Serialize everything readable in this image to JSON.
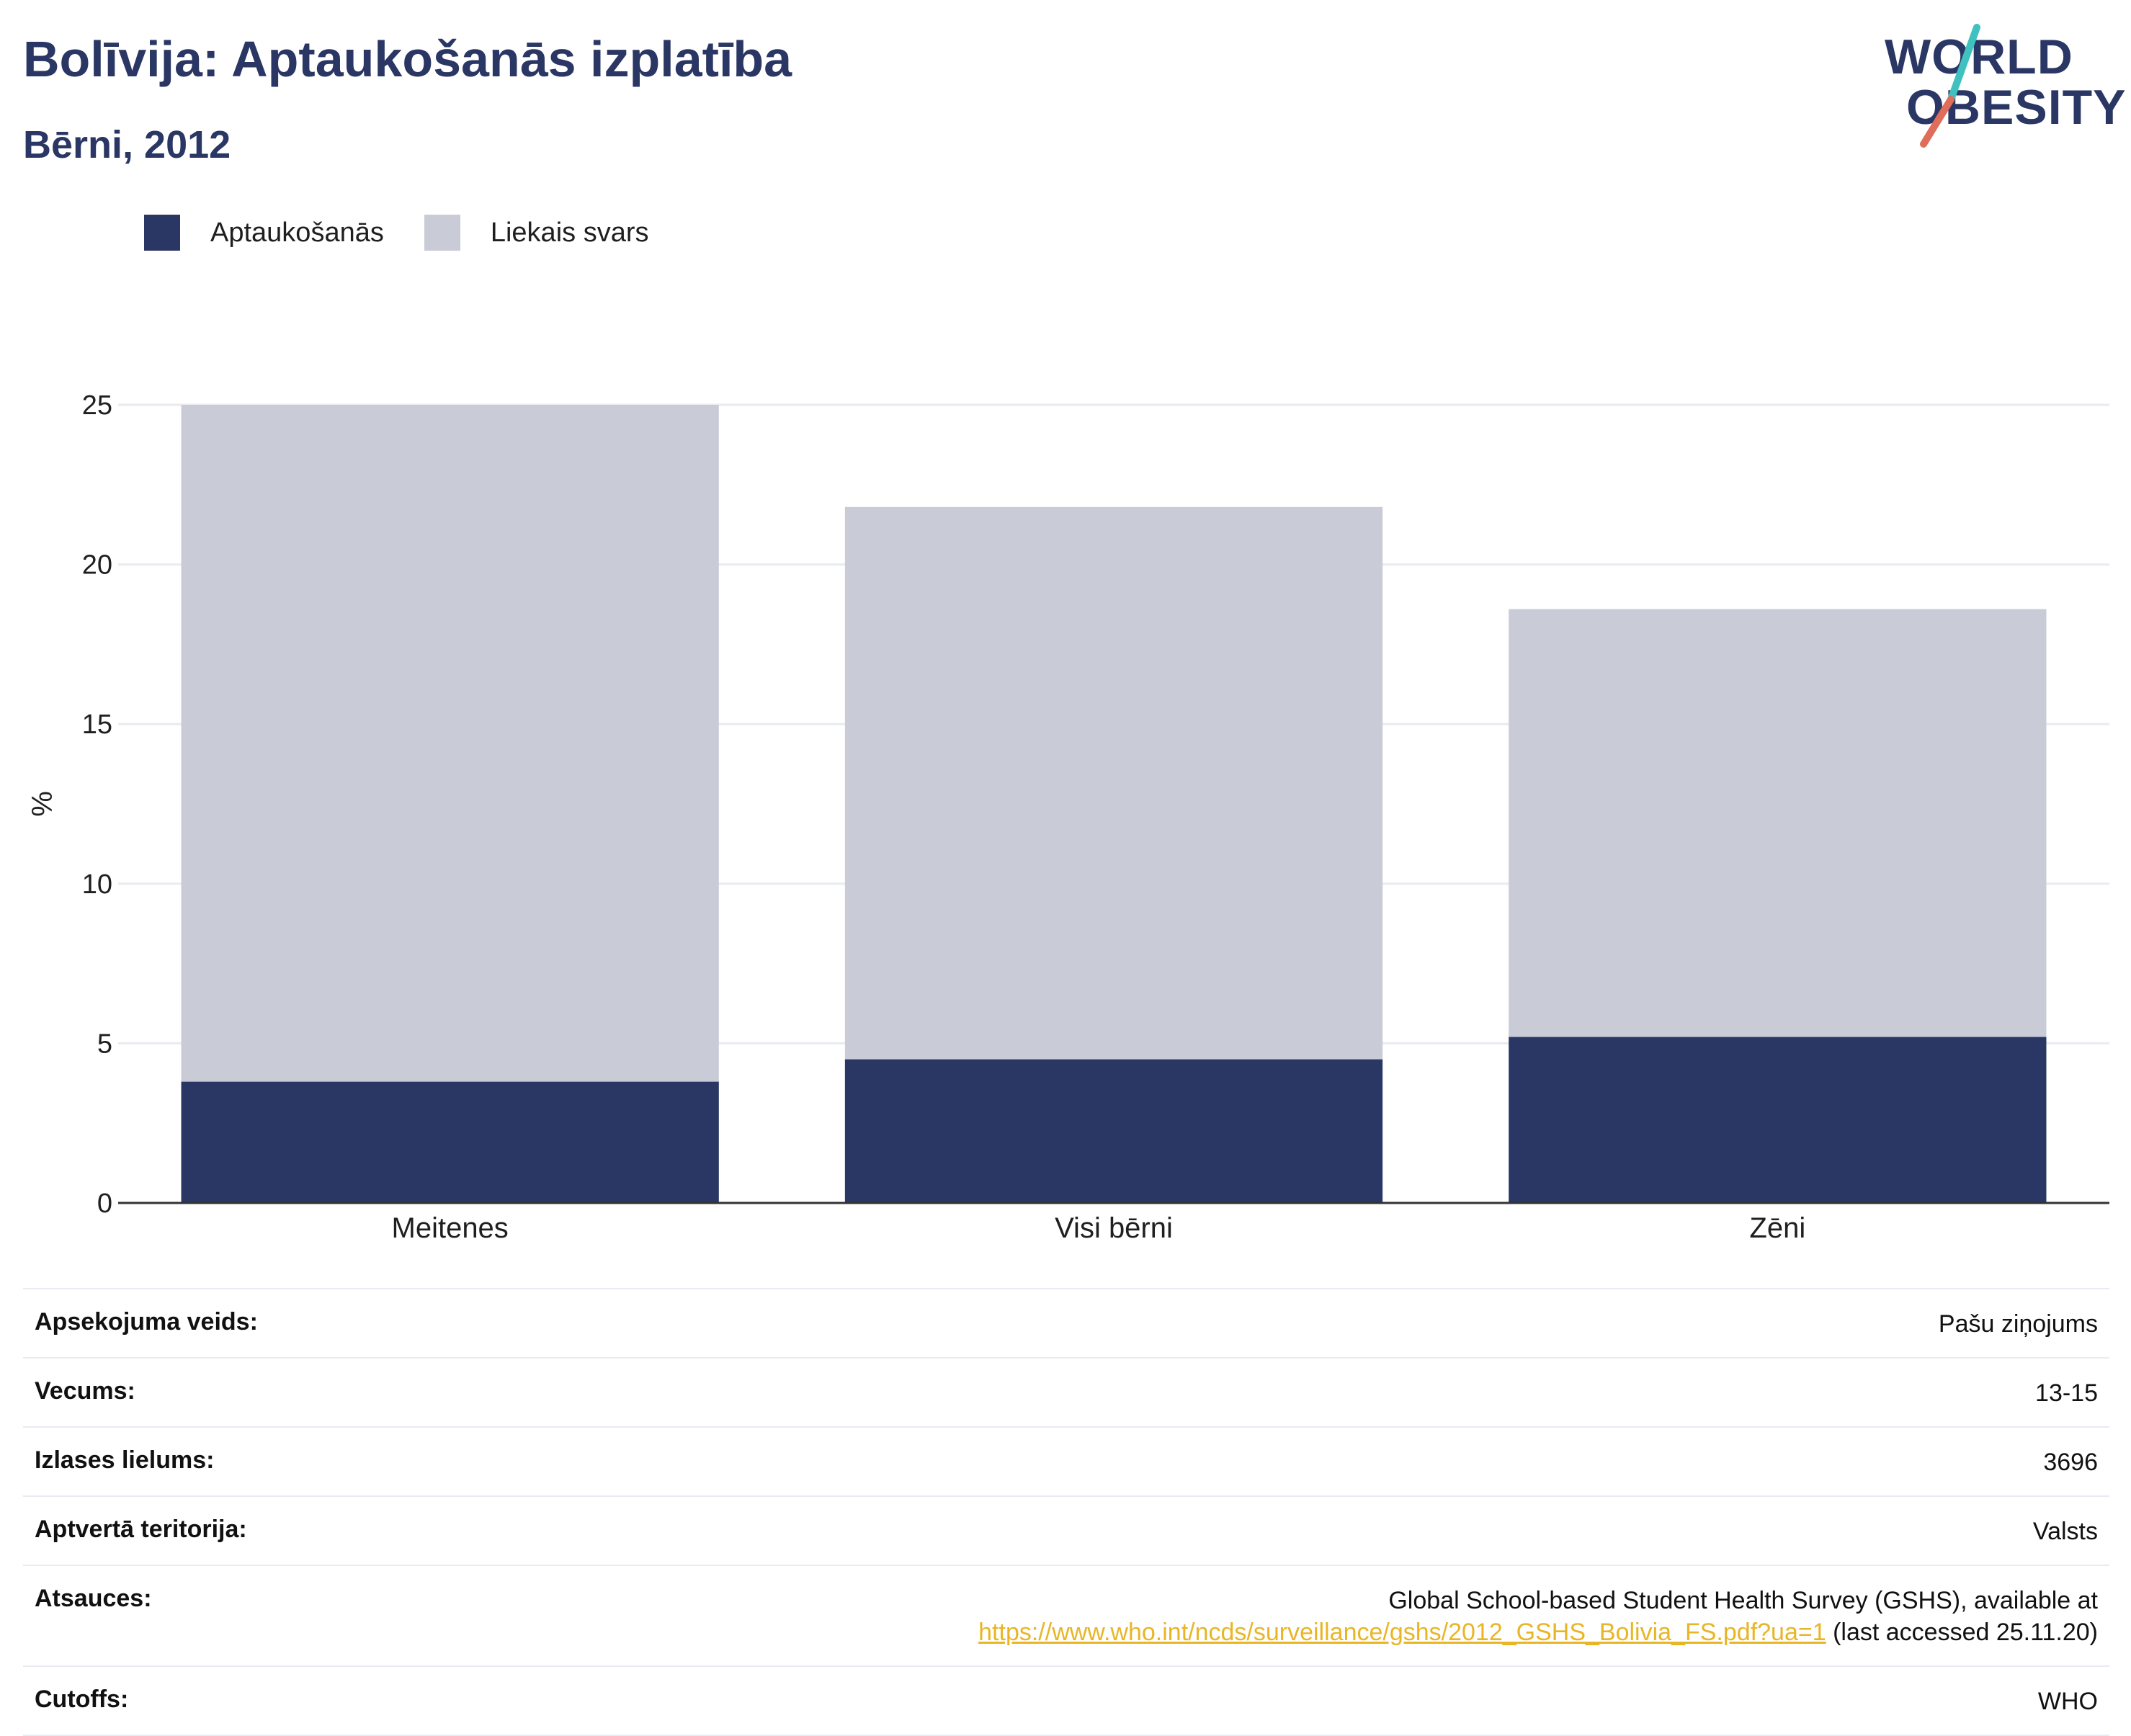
{
  "header": {
    "title": "Bolīvija: Aptaukošanās izplatība",
    "subtitle": "Bērni, 2012"
  },
  "logo": {
    "line1": "WORLD",
    "line2": "OBESITY",
    "accent_colors": [
      "#3fc1c0",
      "#e06c5a"
    ]
  },
  "legend": [
    {
      "label": "Aptaukošanās",
      "color": "#2a3663"
    },
    {
      "label": "Liekais svars",
      "color": "#c9cbd7"
    }
  ],
  "chart_data": {
    "type": "bar",
    "stacked": true,
    "categories": [
      "Meitenes",
      "Visi bērni",
      "Zēni"
    ],
    "series": [
      {
        "name": "Aptaukošanās",
        "color": "#2a3663",
        "values": [
          3.8,
          4.5,
          5.2
        ]
      },
      {
        "name": "Liekais svars",
        "color": "#c9cbd7",
        "values": [
          21.2,
          17.3,
          13.4
        ]
      }
    ],
    "ylabel": "%",
    "ylim": [
      0,
      25
    ],
    "yticks": [
      0,
      5,
      10,
      15,
      20,
      25
    ],
    "grid": true,
    "legend_position": "top-left"
  },
  "info": [
    {
      "label": "Apsekojuma veids:",
      "value": "Pašu ziņojums"
    },
    {
      "label": "Vecums:",
      "value": "13-15"
    },
    {
      "label": "Izlases lielums:",
      "value": "3696"
    },
    {
      "label": "Aptvertā teritorija:",
      "value": "Valsts"
    },
    {
      "label": "Atsauces:",
      "value_line1": "Global School-based Student Health Survey (GSHS), available at",
      "link": "https://www.who.int/ncds/surveillance/gshs/2012_GSHS_Bolivia_FS.pdf?ua=1",
      "value_suffix": " (last accessed 25.11.20)"
    },
    {
      "label": "Cutoffs:",
      "value": "WHO"
    }
  ]
}
